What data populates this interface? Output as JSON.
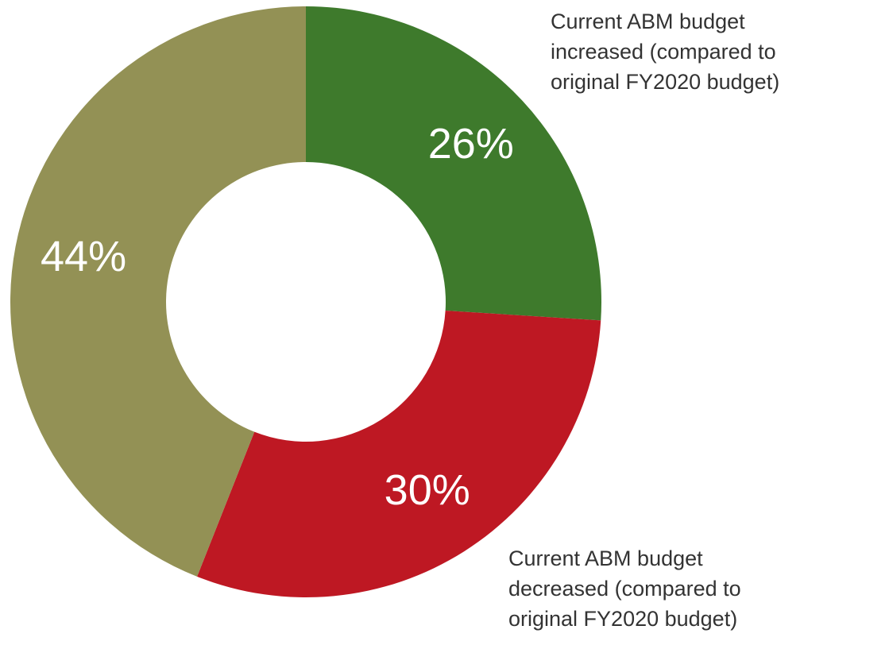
{
  "chart_data": {
    "type": "donut",
    "categories": [
      "Current ABM budget\nincreased (compared to\noriginal FY2020 budget)",
      "Current ABM budget\ndecreased (compared to\noriginal FY2020 budget)",
      null
    ],
    "values": [
      26,
      30,
      44
    ],
    "value_labels": [
      "26%",
      "30%",
      "44%"
    ],
    "colors": [
      "#3e7a2c",
      "#be1823",
      "#939155"
    ]
  }
}
